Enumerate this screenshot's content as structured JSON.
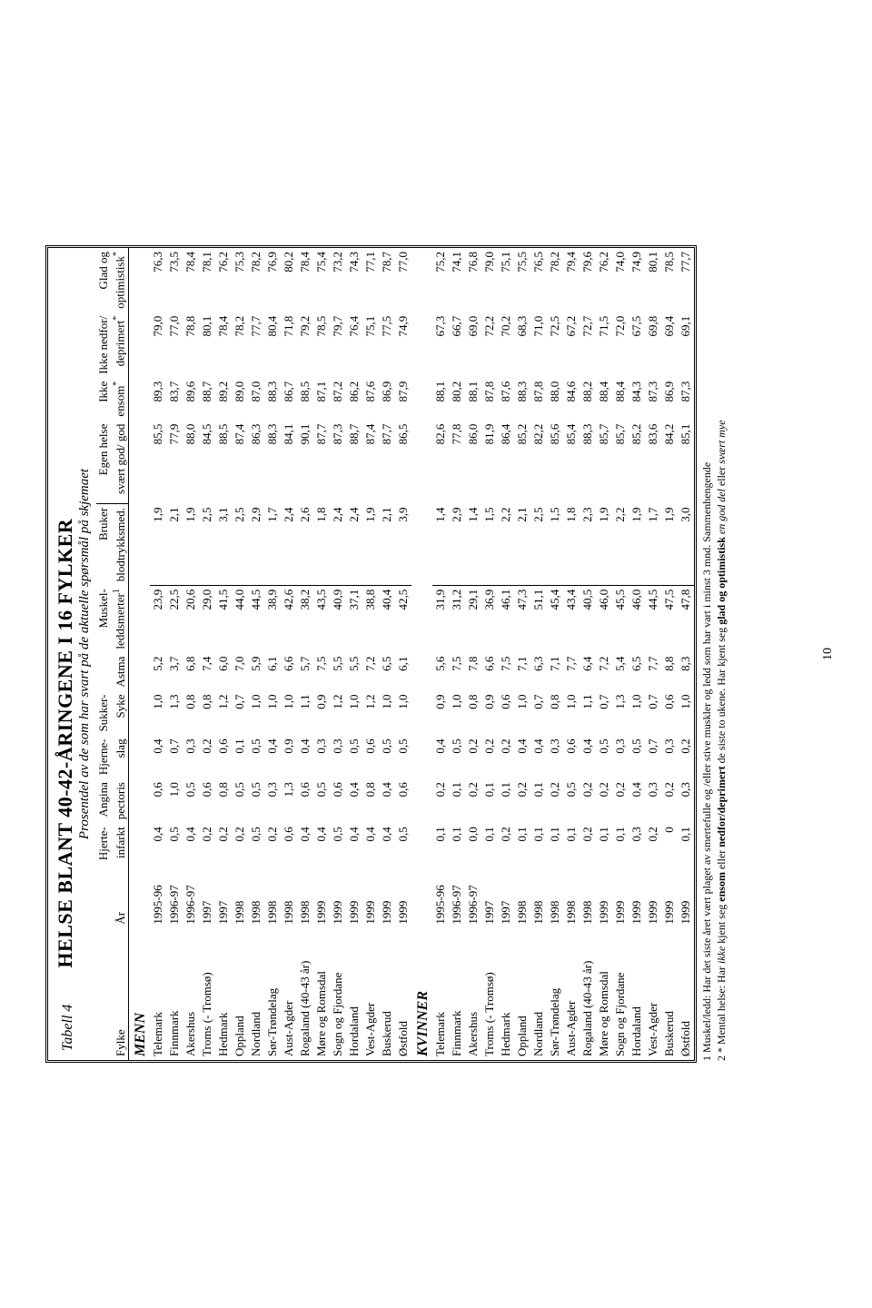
{
  "tableLabel": "Tabell 4",
  "title": "HELSE BLANT 40-42-ÅRINGENE I 16 FYLKER",
  "subtitle": "Prosentdel av de som har svart på de  aktuelle spørsmål på skjemaet",
  "columns": {
    "fylke": "Fylke",
    "year": "År",
    "hjerte1": "Hjerte-",
    "hjerte2": "infarkt",
    "angina1": "Angina",
    "angina2": "pectoris",
    "hjerne1": "Hjerne-",
    "hjerne2": "slag",
    "sukker1": "Sukker-",
    "sukker2": "Syke",
    "astma": "Astma",
    "muskel1": "Muskel-",
    "muskel2": "leddsmerter",
    "muskelSup": "1",
    "blod1": "Bruker",
    "blod2": "blodtrykksmed.",
    "egen1": "Egen  helse",
    "egen2": "svært god/ god",
    "ikkeensom1": "Ikke",
    "ikkeensom2": "ensom",
    "ikkened1": "Ikke nedfor/",
    "ikkened2": "deprimert",
    "glad1": "Glad og",
    "glad2": "optimistisk",
    "star": "*"
  },
  "sections": {
    "menn": "MENN",
    "kvinner": "KVINNER"
  },
  "menn": [
    [
      "Telemark",
      "1995-96",
      "0,4",
      "0,6",
      "0,4",
      "1,0",
      "5,2",
      "23,9",
      "1,9",
      "85,5",
      "89,3",
      "79,0",
      "76,3"
    ],
    [
      "Finnmark",
      "1996-97",
      "0,5",
      "1,0",
      "0,7",
      "1,3",
      "3,7",
      "22,5",
      "2,1",
      "77,9",
      "83,7",
      "77,0",
      "73,5"
    ],
    [
      "Akershus",
      "1996-97",
      "0,4",
      "0,5",
      "0,3",
      "0,8",
      "6,8",
      "20,6",
      "1,9",
      "88,0",
      "89,6",
      "78,8",
      "78,4"
    ],
    [
      "Troms  (- Tromsø)",
      "1997",
      "0,2",
      "0,6",
      "0,2",
      "0,8",
      "7,4",
      "29,0",
      "2,5",
      "84,5",
      "88,7",
      "80,1",
      "78,1"
    ],
    [
      "Hedmark",
      "1997",
      "0,2",
      "0,8",
      "0,6",
      "1,2",
      "6,0",
      "41,5",
      "3,1",
      "88,5",
      "89,2",
      "78,4",
      "76,2"
    ],
    [
      "Oppland",
      "1998",
      "0,2",
      "0,5",
      "0,1",
      "0,7",
      "7,0",
      "44,0",
      "2,5",
      "87,4",
      "89,0",
      "78,2",
      "75,3"
    ],
    [
      "Nordland",
      "1998",
      "0,5",
      "0,5",
      "0,5",
      "1,0",
      "5,9",
      "44,5",
      "2,9",
      "86,3",
      "87,0",
      "77,7",
      "78,2"
    ],
    [
      "Sør-Trøndelag",
      "1998",
      "0,2",
      "0,3",
      "0,4",
      "1,0",
      "6,1",
      "38,9",
      "1,7",
      "88,3",
      "88,3",
      "80,4",
      "76,9"
    ],
    [
      "Aust-Agder",
      "1998",
      "0,6",
      "1,3",
      "0,9",
      "1,0",
      "6,6",
      "42,6",
      "2,4",
      "84,1",
      "86,7",
      "71,8",
      "80,2"
    ],
    [
      "Rogaland (40-43 år)",
      "1998",
      "0,4",
      "0,6",
      "0,4",
      "1,1",
      "5,7",
      "38,2",
      "2,6",
      "90,1",
      "88,5",
      "79,2",
      "78,4"
    ],
    [
      "Møre og Romsdal",
      "1999",
      "0,4",
      "0,5",
      "0,3",
      "0,9",
      "7,5",
      "43,5",
      "1,8",
      "87,7",
      "87,1",
      "78,5",
      "75,4"
    ],
    [
      "Sogn og Fjordane",
      "1999",
      "0,5",
      "0,6",
      "0,3",
      "1,2",
      "5,5",
      "40,9",
      "2,4",
      "87,3",
      "87,2",
      "79,7",
      "73,2"
    ],
    [
      "Hordaland",
      "1999",
      "0,4",
      "0,4",
      "0,5",
      "1,0",
      "5,5",
      "37,1",
      "2,4",
      "88,7",
      "86,2",
      "76,4",
      "74,3"
    ],
    [
      "Vest-Agder",
      "1999",
      "0,4",
      "0,8",
      "0,6",
      "1,2",
      "7,2",
      "38,8",
      "1,9",
      "87,4",
      "87,6",
      "75,1",
      "77,1"
    ],
    [
      "Buskerud",
      "1999",
      "0,4",
      "0,4",
      "0,5",
      "1,0",
      "6,5",
      "40,4",
      "2,1",
      "87,7",
      "86,9",
      "77,5",
      "78,7"
    ],
    [
      "Østfold",
      "1999",
      "0,5",
      "0,6",
      "0,5",
      "1,0",
      "6,1",
      "42,5",
      "3,9",
      "86,5",
      "87,9",
      "74,9",
      "77,0"
    ]
  ],
  "kvinner": [
    [
      "Telemark",
      "1995-96",
      "0,1",
      "0,2",
      "0,4",
      "0,9",
      "5,6",
      "31,9",
      "1,4",
      "82,6",
      "88,1",
      "67,3",
      "75,2"
    ],
    [
      "Finnmark",
      "1996-97",
      "0,1",
      "0,1",
      "0,5",
      "1,0",
      "7,5",
      "31,2",
      "2,9",
      "77,8",
      "80,2",
      "66,7",
      "74,1"
    ],
    [
      "Akershus",
      "1996-97",
      "0,0",
      "0,2",
      "0,2",
      "0,8",
      "7,8",
      "29,1",
      "1,4",
      "86,0",
      "88,1",
      "69,0",
      "76,8"
    ],
    [
      "Troms (- Tromsø)",
      "1997",
      "0,1",
      "0,1",
      "0,2",
      "0,9",
      "6,6",
      "36,9",
      "1,5",
      "81,9",
      "87,8",
      "72,2",
      "79,0"
    ],
    [
      "Hedmark",
      "1997",
      "0,2",
      "0,1",
      "0,2",
      "0,6",
      "7,5",
      "46,1",
      "2,2",
      "86,4",
      "87,6",
      "70,2",
      "75,1"
    ],
    [
      "Oppland",
      "1998",
      "0,1",
      "0,2",
      "0,4",
      "1,0",
      "7,1",
      "47,3",
      "2,1",
      "85,2",
      "88,3",
      "68,3",
      "75,5"
    ],
    [
      "Nordland",
      "1998",
      "0,1",
      "0,1",
      "0,4",
      "0,7",
      "6,3",
      "51,1",
      "2,5",
      "82,2",
      "87,8",
      "71,0",
      "76,5"
    ],
    [
      "Sør-Trøndelag",
      "1998",
      "0,1",
      "0,2",
      "0,3",
      "0,8",
      "7,1",
      "45,4",
      "1,5",
      "85,6",
      "88,0",
      "72,5",
      "78,2"
    ],
    [
      "Aust-Agder",
      "1998",
      "0,1",
      "0,5",
      "0,6",
      "1,0",
      "7,7",
      "43,4",
      "1,8",
      "85,4",
      "84,6",
      "67,2",
      "79,4"
    ],
    [
      "Rogaland (40-43 år)",
      "1998",
      "0,2",
      "0,2",
      "0,4",
      "1,1",
      "6,4",
      "40,5",
      "2,3",
      "88,3",
      "88,2",
      "72,7",
      "79,6"
    ],
    [
      "Møre og Romsdal",
      "1999",
      "0,1",
      "0,2",
      "0,5",
      "0,7",
      "7,2",
      "46,0",
      "1,9",
      "85,7",
      "88,4",
      "71,5",
      "76,2"
    ],
    [
      "Sogn og Fjordane",
      "1999",
      "0,1",
      "0,2",
      "0,3",
      "1,3",
      "5,4",
      "45,5",
      "2,2",
      "85,7",
      "88,4",
      "72,0",
      "74,0"
    ],
    [
      "Hordaland",
      "1999",
      "0,3",
      "0,4",
      "0,5",
      "1,0",
      "6,5",
      "46,0",
      "1,9",
      "85,2",
      "84,3",
      "67,5",
      "74,9"
    ],
    [
      "Vest-Agder",
      "1999",
      "0,2",
      "0,3",
      "0,7",
      "0,7",
      "7,7",
      "44,5",
      "1,7",
      "83,6",
      "87,3",
      "69,8",
      "80,1"
    ],
    [
      "Buskerud",
      "1999",
      "0",
      "0,2",
      "0,3",
      "0,6",
      "8,8",
      "47,5",
      "1,9",
      "84,2",
      "86,9",
      "69,4",
      "78,5"
    ],
    [
      "Østfold",
      "1999",
      "0,1",
      "0,3",
      "0,2",
      "1,0",
      "8,3",
      "47,8",
      "3,0",
      "85,1",
      "87,3",
      "69,1",
      "77,7"
    ]
  ],
  "footnotes": {
    "f1pre": "1 Muskel/ledd: Har det siste året vært  plaget av smertefulle  og /eller stive muskler og ledd som har vart i minst 3 mnd. Sammenhengende",
    "f2pre": "2 *   Mental helse: Har ",
    "f2a": "ikke",
    "f2b": " kjent seg ",
    "f2c": "ensom",
    "f2d": " eller ",
    "f2e": "nedfor/deprimert",
    "f2f": " de siste to ukene. Har kjent seg ",
    "f2g": "glad og optimistisk",
    "f2h": " ",
    "f2i": "en god del",
    "f2j": " eller ",
    "f2k": "svært mye"
  },
  "pageNumber": "10"
}
